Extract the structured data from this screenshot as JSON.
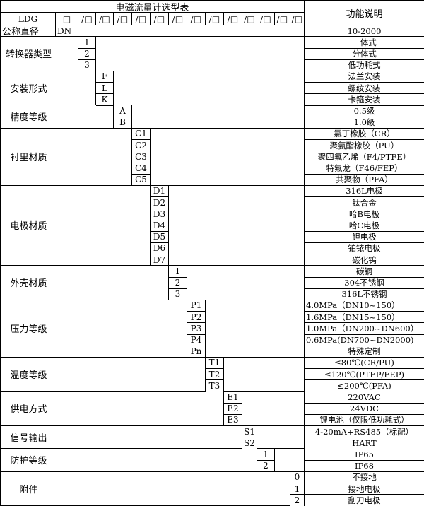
{
  "title": "电磁流量计选型表",
  "function_header": "功能说明",
  "model_prefix": "LDG",
  "header_slots": [
    "□",
    "/□",
    "/□",
    "/□",
    "/□",
    "/□",
    "/□",
    "/□",
    "/□",
    "/□",
    "/□",
    "/□",
    "/□",
    "/□"
  ],
  "nominal": {
    "label": "公称直径",
    "code": "DN",
    "desc": "10-2000"
  },
  "groups": [
    {
      "label": "转换器类型",
      "options": [
        {
          "code": "1",
          "desc": "一体式"
        },
        {
          "code": "2",
          "desc": "分体式"
        },
        {
          "code": "3",
          "desc": "低功耗式"
        }
      ]
    },
    {
      "label": "安装形式",
      "options": [
        {
          "code": "F",
          "desc": "法兰安装"
        },
        {
          "code": "L",
          "desc": "螺纹安装"
        },
        {
          "code": "K",
          "desc": "卡箍安装"
        }
      ]
    },
    {
      "label": "精度等级",
      "options": [
        {
          "code": "A",
          "desc": "0.5级"
        },
        {
          "code": "B",
          "desc": "1.0级"
        }
      ]
    },
    {
      "label": "衬里材质",
      "options": [
        {
          "code": "C1",
          "desc": "氯丁橡胶（CR）"
        },
        {
          "code": "C2",
          "desc": "聚氨酯橡胶（PU）"
        },
        {
          "code": "C3",
          "desc": "聚四氟乙烯（F4/PTFE）"
        },
        {
          "code": "C4",
          "desc": "特氟龙（F46/FEP）"
        },
        {
          "code": "C5",
          "desc": "共聚物（PFA）"
        }
      ]
    },
    {
      "label": "电极材质",
      "options": [
        {
          "code": "D1",
          "desc": "316L电极"
        },
        {
          "code": "D2",
          "desc": "钛合金"
        },
        {
          "code": "D3",
          "desc": "哈B电极"
        },
        {
          "code": "D4",
          "desc": "哈C电极"
        },
        {
          "code": "D5",
          "desc": "钽电极"
        },
        {
          "code": "D6",
          "desc": "铂铱电极"
        },
        {
          "code": "D7",
          "desc": "碳化钨"
        }
      ]
    },
    {
      "label": "外壳材质",
      "options": [
        {
          "code": "1",
          "desc": "碳钢"
        },
        {
          "code": "2",
          "desc": "304不锈钢"
        },
        {
          "code": "3",
          "desc": "316L不锈钢"
        }
      ]
    },
    {
      "label": "压力等级",
      "options": [
        {
          "code": "P1",
          "desc": "4.0MPa（DN10~150）"
        },
        {
          "code": "P2",
          "desc": "1.6MPa（DN15~150）"
        },
        {
          "code": "P3",
          "desc": "1.0MPa（DN200~DN600）"
        },
        {
          "code": "P4",
          "desc": "0.6MPa(DN700~DN2000)"
        },
        {
          "code": "Pn",
          "desc": "特殊定制"
        }
      ]
    },
    {
      "label": "温度等级",
      "options": [
        {
          "code": "T1",
          "desc": "≤80℃(CR/PU)"
        },
        {
          "code": "T2",
          "desc": "≤120℃(PTEP/FEP)"
        },
        {
          "code": "T3",
          "desc": "≤200℃(PFA)"
        }
      ]
    },
    {
      "label": "供电方式",
      "options": [
        {
          "code": "E1",
          "desc": "220VAC"
        },
        {
          "code": "E2",
          "desc": "24VDC"
        },
        {
          "code": "E3",
          "desc": "锂电池（仅限低功耗式）"
        }
      ]
    },
    {
      "label": "信号输出",
      "options": [
        {
          "code": "S1",
          "desc": "4-20mA+RS485（标配）"
        },
        {
          "code": "S2",
          "desc": "HART"
        }
      ]
    },
    {
      "label": "防护等级",
      "options": [
        {
          "code": "1",
          "desc": "IP65"
        },
        {
          "code": "2",
          "desc": "IP68"
        }
      ]
    },
    {
      "label": "附件",
      "options": [
        {
          "code": "0",
          "desc": "不接地"
        },
        {
          "code": "1",
          "desc": "接地电极"
        },
        {
          "code": "2",
          "desc": "刮刀电极"
        }
      ]
    }
  ]
}
